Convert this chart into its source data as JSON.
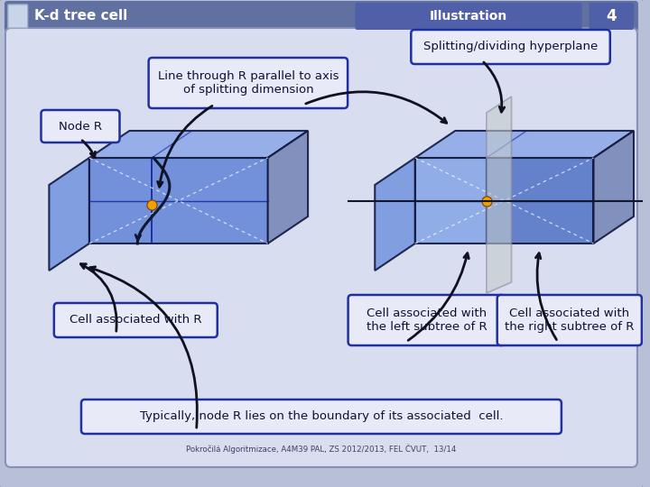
{
  "title": "K-d tree cell",
  "subtitle": "Illustration",
  "slide_number": "4",
  "footer": "Pokročilá Algoritmizace, A4M39 PAL, ZS 2012/2013, FEL ČVUT,  13/14",
  "bg_outer": "#b8c0d8",
  "bg_inner": "#d8ddf0",
  "header_bg": "#6070a0",
  "header_text": "#ffffff",
  "header_sub_bg": "#5060a0",
  "box_border": "#2030a0",
  "box_fill": "#e8eaf8",
  "label_node_r": "Node R",
  "label_cell_r": "Cell associated with R",
  "label_line": "Line through R parallel to axis\nof splitting dimension",
  "label_split": "Splitting/dividing hyperplane",
  "label_left": "Cell associated with\nthe left subtree of R",
  "label_right": "Cell associated with\nthe right subtree of R",
  "label_bottom": "Typically, node R lies on the boundary of its associated  cell.",
  "node_color": "#f0a000",
  "lc_front": "#6888d0",
  "lc_top": "#88aaee",
  "lc_side": "#8899cc",
  "lc_left_face": "#9ab0e8",
  "rc_front_left": "#7090d8",
  "rc_front_right": "#5878c8",
  "rc_top": "#88aaee",
  "rc_side": "#8899cc",
  "hp_fill": "#c8d0d0",
  "hp_edge": "#909898",
  "arrow_color": "#101020",
  "grid_color": "#1020a0",
  "diag_color": "#ffffff"
}
